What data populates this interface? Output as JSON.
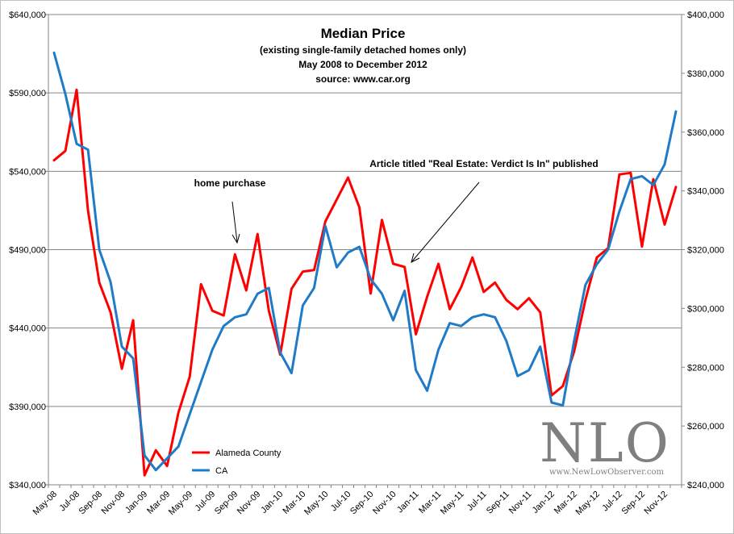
{
  "chart_data": {
    "type": "line",
    "title": "Median Price",
    "subtitle_lines": [
      "(existing single-family detached homes only)",
      "May 2008  to  December 2012",
      "source: www.car.org"
    ],
    "xlabel": "",
    "ylabel_left": "",
    "ylabel_right": "",
    "left_axis": {
      "ylim": [
        340000,
        640000
      ],
      "ticks": [
        340000,
        390000,
        440000,
        490000,
        540000,
        590000,
        640000
      ],
      "tick_labels": [
        "$340,000",
        "$390,000",
        "$440,000",
        "$490,000",
        "$540,000",
        "$590,000",
        "$640,000"
      ]
    },
    "right_axis": {
      "ylim": [
        240000,
        400000
      ],
      "ticks": [
        240000,
        260000,
        280000,
        300000,
        320000,
        340000,
        360000,
        380000,
        400000
      ],
      "tick_labels": [
        "$240,000",
        "$260,000",
        "$280,000",
        "$300,000",
        "$320,000",
        "$340,000",
        "$360,000",
        "$380,000",
        "$400,000"
      ]
    },
    "grid": true,
    "x_tick_labels": [
      "May-08",
      "Jul-08",
      "Sep-08",
      "Nov-08",
      "Jan-09",
      "Mar-09",
      "May-09",
      "Jul-09",
      "Sep-09",
      "Nov-09",
      "Jan-10",
      "Mar-10",
      "May-10",
      "Jul-10",
      "Sep-10",
      "Nov-10",
      "Jan-11",
      "Mar-11",
      "May-11",
      "Jul-11",
      "Sep-11",
      "Nov-11",
      "Jan-12",
      "Mar-12",
      "May-12",
      "Jul-12",
      "Sep-12",
      "Nov-12"
    ],
    "series": [
      {
        "name": "Alameda County",
        "axis": "left",
        "color": "#ff0000",
        "values": [
          547000,
          553000,
          592000,
          515000,
          469000,
          450000,
          414000,
          445000,
          346000,
          362000,
          352000,
          386000,
          409000,
          468000,
          451000,
          448000,
          487000,
          464000,
          500000,
          451000,
          423000,
          465000,
          476000,
          477000,
          508000,
          522000,
          536000,
          517000,
          462000,
          509000,
          481000,
          479000,
          436000,
          460000,
          481000,
          452000,
          466000,
          485000,
          463000,
          469000,
          458000,
          452000,
          459000,
          450000,
          397000,
          403000,
          425000,
          458000,
          485000,
          491000,
          538000,
          539000,
          492000,
          535000,
          506000,
          530000
        ]
      },
      {
        "name": "CA",
        "axis": "right",
        "color": "#1f7bc8",
        "values": [
          387000,
          373000,
          356000,
          354000,
          320000,
          309000,
          287000,
          283000,
          250000,
          245000,
          249000,
          253000,
          264000,
          275000,
          286000,
          294000,
          297000,
          298000,
          305000,
          307000,
          285000,
          278000,
          301000,
          307000,
          328000,
          314000,
          319000,
          321000,
          310000,
          305000,
          296000,
          306000,
          279000,
          272000,
          286000,
          295000,
          294000,
          297000,
          298000,
          297000,
          289000,
          277000,
          279000,
          287000,
          268000,
          267000,
          289000,
          308000,
          315000,
          320000,
          333000,
          344000,
          345000,
          342000,
          349000,
          367000
        ]
      }
    ],
    "annotations": [
      {
        "text": "home purchase",
        "points_to_index": 16
      },
      {
        "text": "Article titled \"Real Estate: Verdict Is In\" published",
        "points_to_index": 31
      }
    ],
    "legend": {
      "position": "bottom-left inside plot",
      "items": [
        "Alameda County",
        "CA"
      ]
    },
    "watermark": {
      "main": "NLO",
      "url": "www.NewLowObserver.com"
    }
  }
}
